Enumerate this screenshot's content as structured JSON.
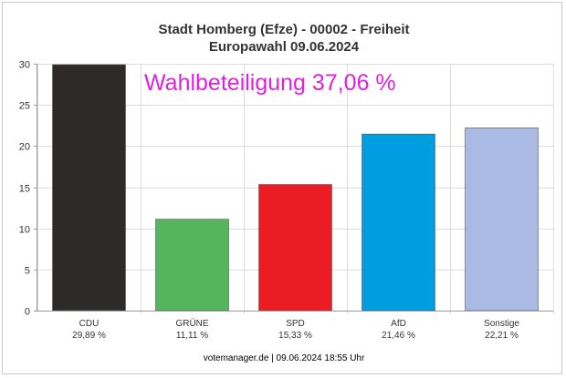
{
  "chart_data": {
    "type": "bar",
    "title": "Stadt Homberg (Efze) - 00002 - Freiheit",
    "subtitle": "Europawahl 09.06.2024",
    "annotation": "Wahlbeteiligung 37,06 %",
    "annotation_color": "#e020e0",
    "categories": [
      "CDU",
      "GRÜNE",
      "SPD",
      "AfD",
      "Sonstige"
    ],
    "values": [
      29.89,
      11.11,
      15.33,
      21.46,
      22.21
    ],
    "value_labels": [
      "29,89 %",
      "11,11 %",
      "15,33 %",
      "21,46 %",
      "22,21 %"
    ],
    "colors": [
      "#2d2a2a",
      "#55b55c",
      "#ec1c24",
      "#009ee0",
      "#a9bbe4"
    ],
    "ylim": [
      0,
      30
    ],
    "yticks": [
      "0",
      "5",
      "10",
      "15",
      "20",
      "25",
      "30"
    ],
    "grid": true,
    "footer": "votemanager.de | 09.06.2024 18:55 Uhr"
  }
}
